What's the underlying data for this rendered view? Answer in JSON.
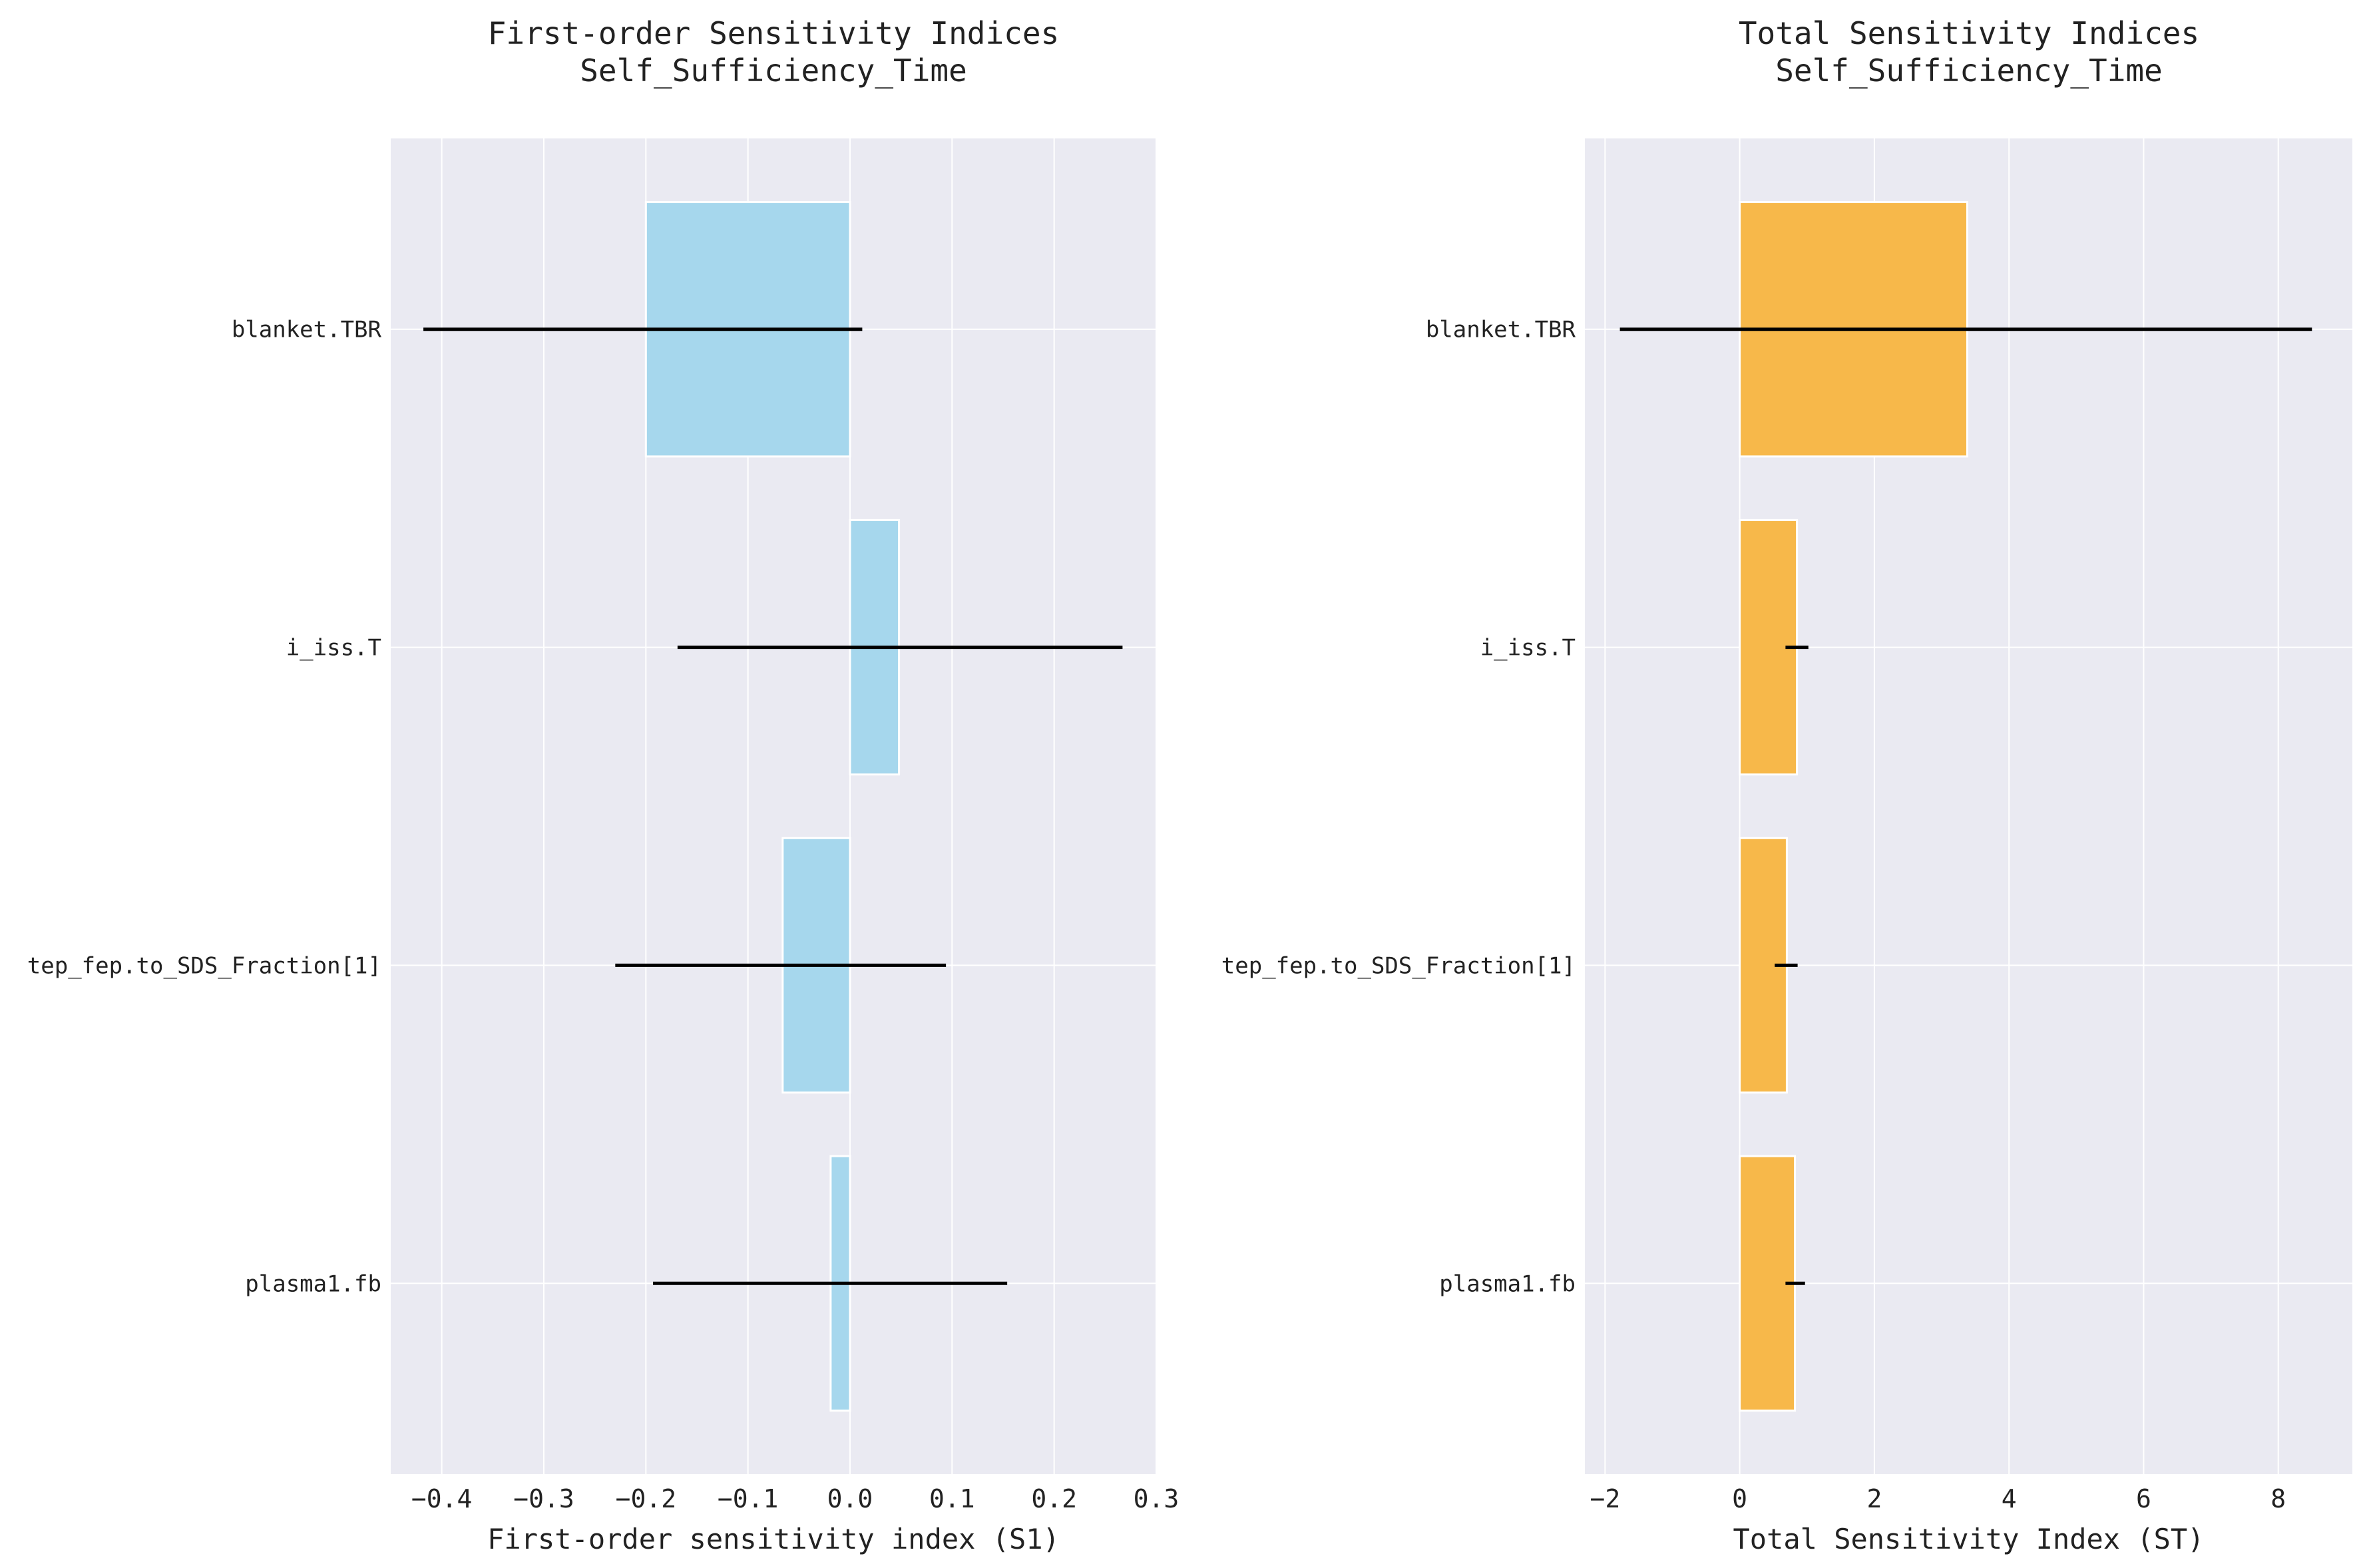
{
  "chart_data": [
    {
      "type": "bar",
      "orientation": "horizontal",
      "title": "First-order Sensitivity Indices",
      "subtitle": "Self_Sufficiency_Time",
      "xlabel": "First-order sensitivity index (S1)",
      "ylabel": "",
      "categories": [
        "blanket.TBR",
        "i_iss.T",
        "tep_fep.to_SDS_Fraction[1]",
        "plasma1.fb"
      ],
      "values": [
        -0.2,
        0.048,
        -0.066,
        -0.019
      ],
      "error_low": [
        -0.418,
        -0.169,
        -0.23,
        -0.193
      ],
      "error_high": [
        0.012,
        0.267,
        0.094,
        0.154
      ],
      "xlim": [
        -0.45,
        0.3
      ],
      "xticks": [
        -0.4,
        -0.3,
        -0.2,
        -0.1,
        0.0,
        0.1,
        0.2,
        0.3
      ],
      "xtick_labels": [
        "−0.4",
        "−0.3",
        "−0.2",
        "−0.1",
        "0.0",
        "0.1",
        "0.2",
        "0.3"
      ],
      "bar_color": "#a6d7ed",
      "grid": true
    },
    {
      "type": "bar",
      "orientation": "horizontal",
      "title": "Total Sensitivity Indices",
      "subtitle": "Self_Sufficiency_Time",
      "xlabel": "Total Sensitivity Index (ST)",
      "ylabel": "",
      "categories": [
        "blanket.TBR",
        "i_iss.T",
        "tep_fep.to_SDS_Fraction[1]",
        "plasma1.fb"
      ],
      "values": [
        3.38,
        0.85,
        0.7,
        0.82
      ],
      "error_low": [
        -1.78,
        0.68,
        0.52,
        0.68
      ],
      "error_high": [
        8.5,
        1.02,
        0.86,
        0.97
      ],
      "xlim": [
        -2.3,
        9.1
      ],
      "xticks": [
        -2,
        0,
        2,
        4,
        6,
        8
      ],
      "xtick_labels": [
        "−2",
        "0",
        "2",
        "4",
        "6",
        "8"
      ],
      "bar_color": "#f7b84a",
      "grid": true
    }
  ],
  "colors": {
    "plot_background": "#eaeaf2",
    "grid": "#ffffff",
    "error_bar": "#000000"
  }
}
